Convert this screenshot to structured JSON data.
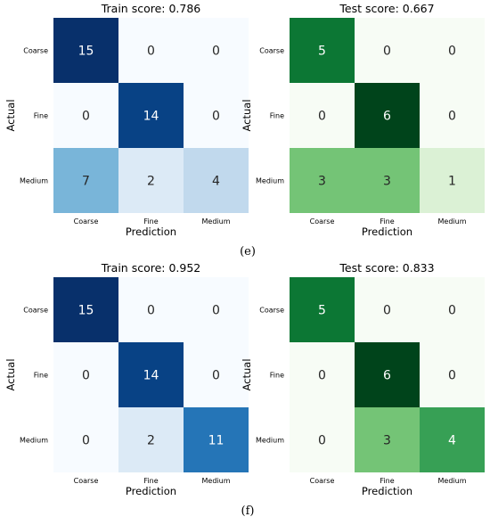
{
  "chart_data": [
    {
      "type": "heatmap",
      "title": "Train score: 0.786",
      "xlabel": "Prediction",
      "ylabel": "Actual",
      "rows": [
        "Coarse",
        "Fine",
        "Medium"
      ],
      "cols": [
        "Coarse",
        "Fine",
        "Medium"
      ],
      "values": [
        [
          15,
          0,
          0
        ],
        [
          0,
          14,
          0
        ],
        [
          7,
          2,
          4
        ]
      ],
      "colormap": "Blues",
      "vmin": 0,
      "vmax": 15
    },
    {
      "type": "heatmap",
      "title": "Test score: 0.667",
      "xlabel": "Prediction",
      "ylabel": "Actual",
      "rows": [
        "Coarse",
        "Fine",
        "Medium"
      ],
      "cols": [
        "Coarse",
        "Fine",
        "Medium"
      ],
      "values": [
        [
          5,
          0,
          0
        ],
        [
          0,
          6,
          0
        ],
        [
          3,
          3,
          1
        ]
      ],
      "colormap": "Greens",
      "vmin": 0,
      "vmax": 6
    },
    {
      "type": "heatmap",
      "title": "Train score: 0.952",
      "xlabel": "Prediction",
      "ylabel": "Actual",
      "rows": [
        "Coarse",
        "Fine",
        "Medium"
      ],
      "cols": [
        "Coarse",
        "Fine",
        "Medium"
      ],
      "values": [
        [
          15,
          0,
          0
        ],
        [
          0,
          14,
          0
        ],
        [
          0,
          2,
          11
        ]
      ],
      "colormap": "Blues",
      "vmin": 0,
      "vmax": 15
    },
    {
      "type": "heatmap",
      "title": "Test score: 0.833",
      "xlabel": "Prediction",
      "ylabel": "Actual",
      "rows": [
        "Coarse",
        "Fine",
        "Medium"
      ],
      "cols": [
        "Coarse",
        "Fine",
        "Medium"
      ],
      "values": [
        [
          5,
          0,
          0
        ],
        [
          0,
          6,
          0
        ],
        [
          0,
          3,
          4
        ]
      ],
      "colormap": "Greens",
      "vmin": 0,
      "vmax": 6
    }
  ],
  "panel_labels": [
    "(e)",
    "(f)"
  ]
}
